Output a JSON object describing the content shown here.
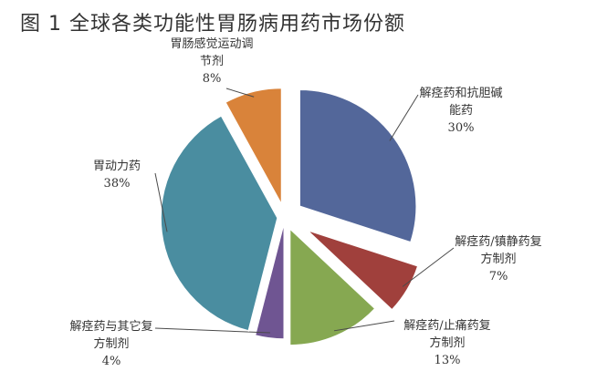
{
  "title": "图 1  全球各类功能性胃肠病用药市场份额",
  "colors": {
    "title": "#333333",
    "leader": "#4a4a4a"
  },
  "chart_data": {
    "type": "pie",
    "title": "图 1  全球各类功能性胃肠病用药市场份额",
    "legend": "none",
    "slices": [
      {
        "label_lines": [
          "解痉药和抗胆碱",
          "能药"
        ],
        "value": 30,
        "value_label": "30%",
        "color": "#53679a"
      },
      {
        "label_lines": [
          "解痉药/镇静药复",
          "方制剂"
        ],
        "value": 7,
        "value_label": "7%",
        "color": "#a0403c"
      },
      {
        "label_lines": [
          "解痉药/止痛药复",
          "方制剂"
        ],
        "value": 13,
        "value_label": "13%",
        "color": "#86a851"
      },
      {
        "label_lines": [
          "解痉药与其它复",
          "方制剂"
        ],
        "value": 4,
        "value_label": "4%",
        "color": "#6f5592"
      },
      {
        "label_lines": [
          "胃动力药"
        ],
        "value": 38,
        "value_label": "38%",
        "color": "#4a8da0"
      },
      {
        "label_lines": [
          "胃肠感觉运动调",
          "节剂"
        ],
        "value": 8,
        "value_label": "8%",
        "color": "#d9833a"
      }
    ]
  }
}
